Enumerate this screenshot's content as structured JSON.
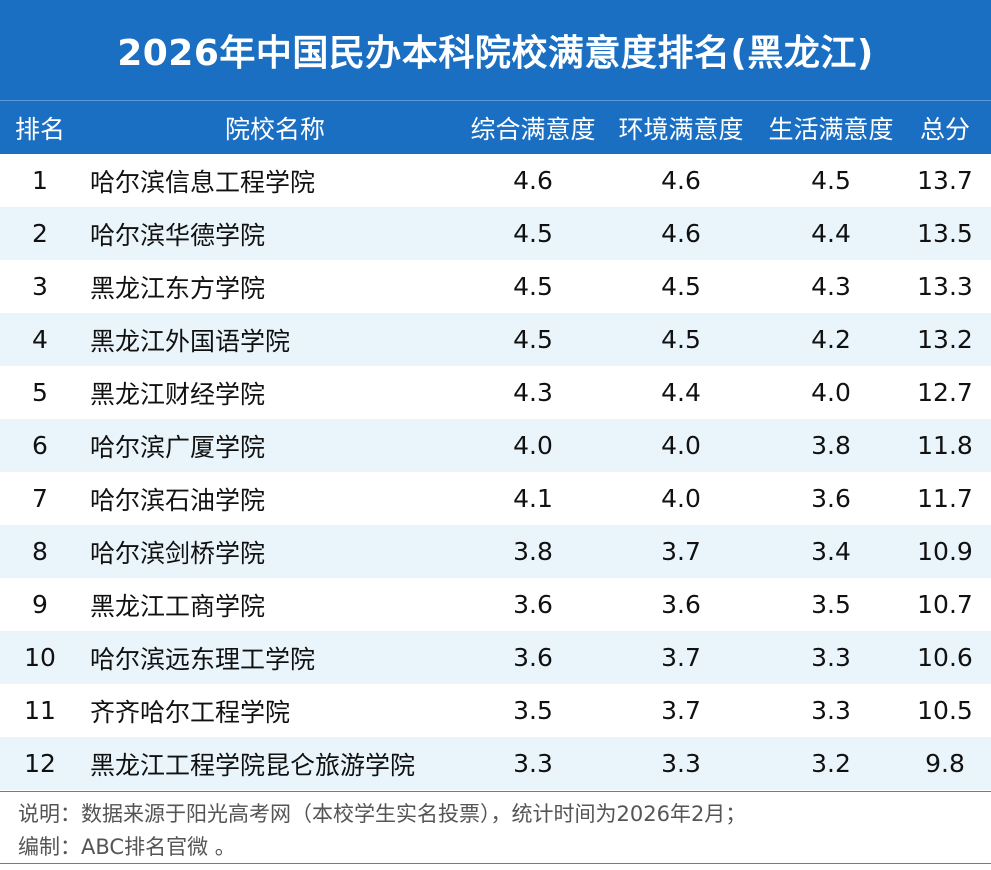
{
  "title": "2026年中国民办本科院校满意度排名(黑龙江)",
  "headers": {
    "rank": "排名",
    "name": "院校名称",
    "overall": "综合满意度",
    "environment": "环境满意度",
    "life": "生活满意度",
    "total": "总分"
  },
  "rows": [
    {
      "rank": "1",
      "name": "哈尔滨信息工程学院",
      "overall": "4.6",
      "environment": "4.6",
      "life": "4.5",
      "total": "13.7"
    },
    {
      "rank": "2",
      "name": "哈尔滨华德学院",
      "overall": "4.5",
      "environment": "4.6",
      "life": "4.4",
      "total": "13.5"
    },
    {
      "rank": "3",
      "name": "黑龙江东方学院",
      "overall": "4.5",
      "environment": "4.5",
      "life": "4.3",
      "total": "13.3"
    },
    {
      "rank": "4",
      "name": "黑龙江外国语学院",
      "overall": "4.5",
      "environment": "4.5",
      "life": "4.2",
      "total": "13.2"
    },
    {
      "rank": "5",
      "name": "黑龙江财经学院",
      "overall": "4.3",
      "environment": "4.4",
      "life": "4.0",
      "total": "12.7"
    },
    {
      "rank": "6",
      "name": "哈尔滨广厦学院",
      "overall": "4.0",
      "environment": "4.0",
      "life": "3.8",
      "total": "11.8"
    },
    {
      "rank": "7",
      "name": "哈尔滨石油学院",
      "overall": "4.1",
      "environment": "4.0",
      "life": "3.6",
      "total": "11.7"
    },
    {
      "rank": "8",
      "name": "哈尔滨剑桥学院",
      "overall": "3.8",
      "environment": "3.7",
      "life": "3.4",
      "total": "10.9"
    },
    {
      "rank": "9",
      "name": "黑龙江工商学院",
      "overall": "3.6",
      "environment": "3.6",
      "life": "3.5",
      "total": "10.7"
    },
    {
      "rank": "10",
      "name": "哈尔滨远东理工学院",
      "overall": "3.6",
      "environment": "3.7",
      "life": "3.3",
      "total": "10.6"
    },
    {
      "rank": "11",
      "name": "齐齐哈尔工程学院",
      "overall": "3.5",
      "environment": "3.7",
      "life": "3.3",
      "total": "10.5"
    },
    {
      "rank": "12",
      "name": "黑龙江工程学院昆仑旅游学院",
      "overall": "3.3",
      "environment": "3.3",
      "life": "3.2",
      "total": "9.8"
    }
  ],
  "footer": {
    "note": "说明：数据来源于阳光高考网（本校学生实名投票），统计时间为2026年2月；",
    "editor": "编制：ABC排名官微 。"
  },
  "colors": {
    "header_bg": "#1b6fc3",
    "row_shade": "#eaf5fb"
  }
}
